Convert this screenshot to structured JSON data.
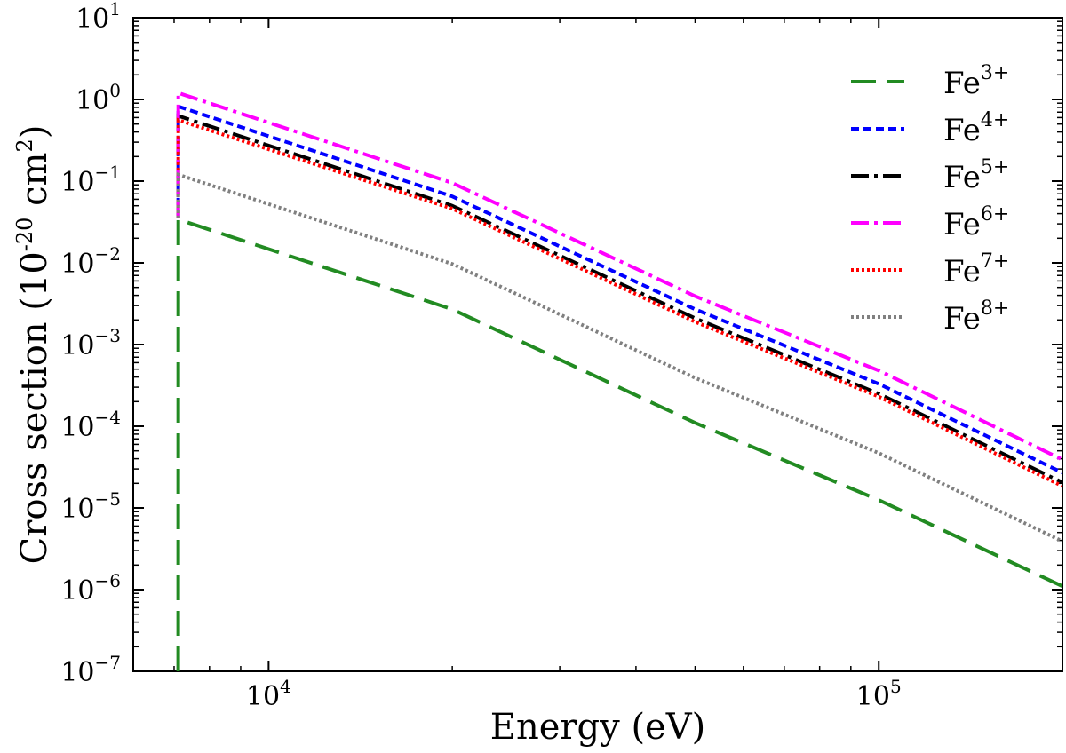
{
  "chart_data": {
    "type": "line",
    "title": "",
    "xlabel": "Energy (eV)",
    "ylabel_main": "Cross section (10",
    "ylabel_exp1": "-20",
    "ylabel_mid": " cm",
    "ylabel_exp2": "2",
    "ylabel_end": ")",
    "xscale": "log",
    "yscale": "log",
    "xlim": [
      6000,
      200000
    ],
    "ylim": [
      1e-07,
      10
    ],
    "x_major_ticks": [
      {
        "value": 10000,
        "base": "10",
        "exp": "4"
      },
      {
        "value": 100000,
        "base": "10",
        "exp": "5"
      }
    ],
    "y_major_ticks": [
      {
        "value": 1e-07,
        "base": "10",
        "exp": "−7"
      },
      {
        "value": 1e-06,
        "base": "10",
        "exp": "−6"
      },
      {
        "value": 1e-05,
        "base": "10",
        "exp": "−5"
      },
      {
        "value": 0.0001,
        "base": "10",
        "exp": "−4"
      },
      {
        "value": 0.001,
        "base": "10",
        "exp": "−3"
      },
      {
        "value": 0.01,
        "base": "10",
        "exp": "−2"
      },
      {
        "value": 0.1,
        "base": "10",
        "exp": "−1"
      },
      {
        "value": 1,
        "base": "10",
        "exp": "0"
      },
      {
        "value": 10,
        "base": "10",
        "exp": "1"
      }
    ],
    "legend_position": "top-right",
    "threshold_x": 7110,
    "series": [
      {
        "name": "Fe",
        "sup": "3+",
        "color": "#228b22",
        "dash": "28,12",
        "dash_name": "long-dash",
        "x": [
          7110,
          7112,
          20000,
          50000,
          100000,
          200000
        ],
        "y": [
          1e-07,
          0.034,
          0.0027,
          0.00011,
          1.25e-05,
          1.1e-06
        ]
      },
      {
        "name": "Fe",
        "sup": "4+",
        "color": "#0000ff",
        "dash": "9,5",
        "dash_name": "short-dash",
        "x": [
          7110,
          7112,
          20000,
          50000,
          100000,
          200000
        ],
        "y": [
          0.035,
          0.82,
          0.065,
          0.0027,
          0.00033,
          2.7e-05
        ]
      },
      {
        "name": "Fe",
        "sup": "5+",
        "color": "#000000",
        "dash": "20,6,4,6",
        "dash_name": "dash-dot",
        "x": [
          7110,
          7112,
          20000,
          50000,
          100000,
          200000
        ],
        "y": [
          0.035,
          0.63,
          0.05,
          0.0021,
          0.00025,
          2.05e-05
        ]
      },
      {
        "name": "Fe",
        "sup": "6+",
        "color": "#ff00ff",
        "dash": "20,6,4,6",
        "dash_name": "dash-dot",
        "x": [
          7110,
          7112,
          20000,
          50000,
          100000,
          200000
        ],
        "y": [
          0.035,
          1.2,
          0.095,
          0.0039,
          0.00048,
          3.9e-05
        ]
      },
      {
        "name": "Fe",
        "sup": "7+",
        "color": "#ff0000",
        "dash": "3,3",
        "dash_name": "dotted",
        "x": [
          7110,
          7112,
          20000,
          50000,
          100000,
          200000
        ],
        "y": [
          0.035,
          0.56,
          0.046,
          0.0019,
          0.00023,
          1.85e-05
        ]
      },
      {
        "name": "Fe",
        "sup": "8+",
        "color": "#808080",
        "dash": "3,3",
        "dash_name": "dotted",
        "x": [
          7110,
          7112,
          20000,
          50000,
          100000,
          200000
        ],
        "y": [
          0.035,
          0.12,
          0.0097,
          0.00039,
          4.7e-05,
          3.9e-06
        ]
      }
    ]
  }
}
